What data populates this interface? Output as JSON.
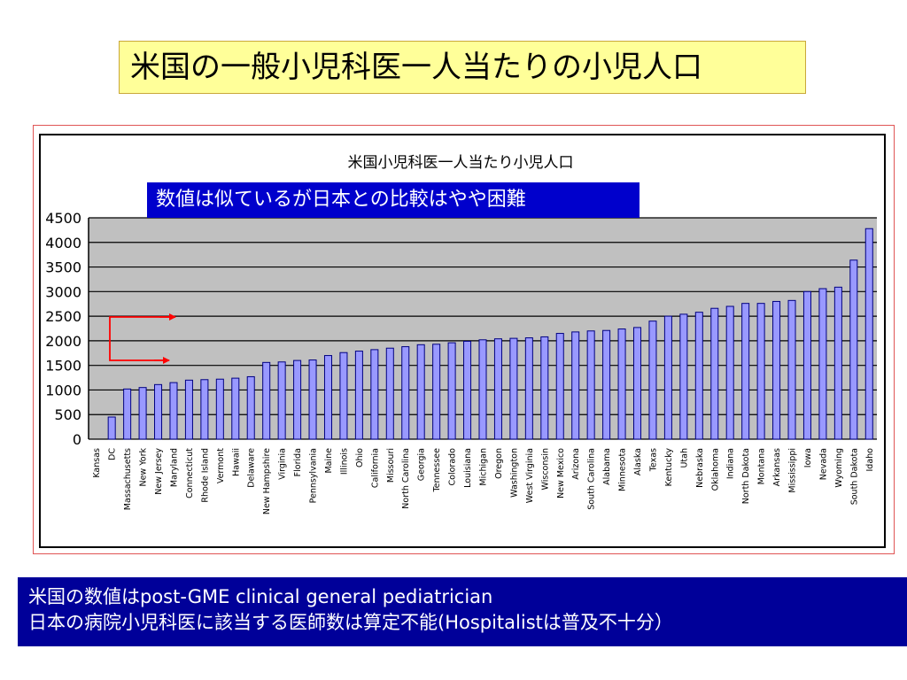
{
  "slide": {
    "title": "米国の一般小児科医一人当たりの小児人口",
    "callout": "数値は似ているが日本との比較はやや困難",
    "footer_line1": "米国の数値はpost-GME clinical general pediatrician",
    "footer_line2": "日本の病院小児科医に該当する医師数は算定不能(Hospitalistは普及不十分）"
  },
  "colors": {
    "bar_fill": "#9999ff",
    "bar_stroke": "#000080",
    "plot_bg": "#c0c0c0",
    "arrow": "#ff0000",
    "title_bg": "#ffff99",
    "callout_bg": "#0000cc",
    "footer_bg": "#000099"
  },
  "chart_data": {
    "type": "bar",
    "title": "米国小児科医一人当たり小児人口",
    "xlabel": "",
    "ylabel": "",
    "ylim": [
      0,
      4500
    ],
    "yticks": [
      0,
      500,
      1000,
      1500,
      2000,
      2500,
      3000,
      3500,
      4000,
      4500
    ],
    "grid": true,
    "legend": "none",
    "categories": [
      "Kansas",
      "DC",
      "Massachusetts",
      "New York",
      "New Jersey",
      "Maryland",
      "Connecticut",
      "Rhode Island",
      "Vermont",
      "Hawaii",
      "Delaware",
      "New Hampshire",
      "Virginia",
      "Florida",
      "Pennsylvania",
      "Maine",
      "Illinois",
      "Ohio",
      "California",
      "Missouri",
      "North Carolina",
      "Georgia",
      "Tennessee",
      "Colorado",
      "Louisiana",
      "Michigan",
      "Oregon",
      "Washington",
      "West Virginia",
      "Wisconsin",
      "New Mexico",
      "Arizona",
      "South Carolina",
      "Alabama",
      "Minnesota",
      "Alaska",
      "Texas",
      "Kentucky",
      "Utah",
      "Nebraska",
      "Oklahoma",
      "Indiana",
      "North Dakota",
      "Montana",
      "Arkansas",
      "Mississippi",
      "Iowa",
      "Nevada",
      "Wyoming",
      "South Dakota",
      "Idaho"
    ],
    "values": [
      0,
      450,
      1020,
      1050,
      1110,
      1150,
      1200,
      1210,
      1220,
      1240,
      1270,
      1560,
      1570,
      1600,
      1610,
      1700,
      1760,
      1790,
      1820,
      1850,
      1880,
      1920,
      1930,
      1960,
      1990,
      2020,
      2040,
      2050,
      2060,
      2080,
      2150,
      2180,
      2200,
      2210,
      2240,
      2270,
      2400,
      2500,
      2540,
      2580,
      2660,
      2700,
      2760,
      2760,
      2800,
      2820,
      3000,
      3060,
      3090,
      3640,
      4280
    ]
  }
}
